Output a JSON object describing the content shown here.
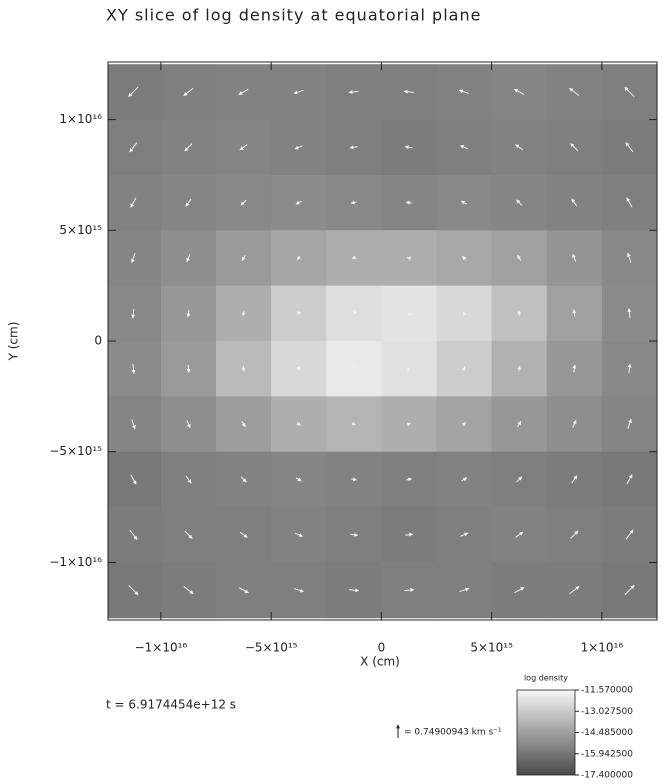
{
  "chart_data": {
    "type": "heatmap",
    "title": "XY slice of log density at equatorial plane",
    "x_label": "X (cm)",
    "y_label": "Y (cm)",
    "xlim": [
      -1.24e+16,
      1.25e+16
    ],
    "ylim": [
      -1.26e+16,
      1.26e+16
    ],
    "xticks": [
      {
        "value": -1e+16,
        "label": "−1×10¹⁶"
      },
      {
        "value": -5000000000000000.0,
        "label": "−5×10¹⁵"
      },
      0,
      {
        "value": 5000000000000000.0,
        "label": "5×10¹⁵"
      },
      {
        "value": 1e+16,
        "label": "1×10¹⁶"
      }
    ],
    "yticks": [
      {
        "value": -1e+16,
        "label": "−1×10¹⁶"
      },
      {
        "value": -5000000000000000.0,
        "label": "−5×10¹⁵"
      },
      0,
      {
        "value": 5000000000000000.0,
        "label": "5×10¹⁵"
      },
      {
        "value": 1e+16,
        "label": "1×10¹⁶"
      }
    ],
    "x": [
      -1.125e+16,
      -8750000000000000.0,
      -6250000000000000.0,
      -3750000000000000.0,
      -1250000000000000.0,
      1250000000000000.0,
      3750000000000000.0,
      6250000000000000.0,
      8750000000000000.0,
      1.125e+16
    ],
    "y": [
      1.125e+16,
      8750000000000000.0,
      6250000000000000.0,
      3750000000000000.0,
      1250000000000000.0,
      -1250000000000000.0,
      -3750000000000000.0,
      -6250000000000000.0,
      -8750000000000000.0,
      -1.125e+16
    ],
    "z": [
      [
        -15.7,
        -15.6,
        -15.5,
        -15.5,
        -15.6,
        -15.6,
        -15.5,
        -15.4,
        -15.5,
        -15.6
      ],
      [
        -15.6,
        -15.5,
        -15.4,
        -15.5,
        -15.6,
        -15.7,
        -15.6,
        -15.5,
        -15.6,
        -15.7
      ],
      [
        -15.5,
        -15.4,
        -15.3,
        -15.2,
        -15.3,
        -15.4,
        -15.3,
        -15.4,
        -15.5,
        -15.6
      ],
      [
        -15.4,
        -15.1,
        -14.7,
        -14.3,
        -14.0,
        -14.0,
        -14.2,
        -14.5,
        -14.9,
        -15.3
      ],
      [
        -15.3,
        -14.8,
        -14.0,
        -13.0,
        -12.4,
        -12.2,
        -12.6,
        -13.4,
        -14.5,
        -15.2
      ],
      [
        -15.2,
        -14.7,
        -13.6,
        -12.6,
        -12.0,
        -12.3,
        -13.0,
        -13.9,
        -14.8,
        -15.3
      ],
      [
        -15.4,
        -15.1,
        -14.6,
        -14.0,
        -13.8,
        -14.0,
        -14.4,
        -14.8,
        -15.1,
        -15.4
      ],
      [
        -15.8,
        -15.6,
        -15.5,
        -15.4,
        -15.5,
        -15.6,
        -15.5,
        -15.6,
        -15.7,
        -15.8
      ],
      [
        -15.7,
        -15.6,
        -15.6,
        -15.5,
        -15.6,
        -15.7,
        -15.6,
        -15.5,
        -15.6,
        -15.7
      ],
      [
        -15.8,
        -15.7,
        -15.6,
        -15.6,
        -15.7,
        -15.6,
        -15.6,
        -15.7,
        -15.7,
        -15.8
      ]
    ],
    "u": [
      [
        -0.54,
        -0.54,
        -0.54,
        -0.54,
        -0.54,
        -0.54,
        -0.54,
        -0.54,
        -0.54,
        -0.54
      ],
      [
        -0.42,
        -0.42,
        -0.42,
        -0.42,
        -0.42,
        -0.42,
        -0.42,
        -0.42,
        -0.42,
        -0.42
      ],
      [
        -0.3,
        -0.3,
        -0.3,
        -0.3,
        -0.3,
        -0.3,
        -0.3,
        -0.3,
        -0.3,
        -0.3
      ],
      [
        -0.18,
        -0.18,
        -0.18,
        -0.18,
        -0.18,
        -0.18,
        -0.18,
        -0.18,
        -0.18,
        -0.18
      ],
      [
        -0.06,
        -0.06,
        -0.06,
        -0.06,
        -0.06,
        -0.06,
        -0.06,
        -0.06,
        -0.06,
        -0.06
      ],
      [
        0.06,
        0.06,
        0.06,
        0.06,
        0.06,
        0.06,
        0.06,
        0.06,
        0.06,
        0.06
      ],
      [
        0.18,
        0.18,
        0.18,
        0.18,
        0.18,
        0.18,
        0.18,
        0.18,
        0.18,
        0.18
      ],
      [
        0.3,
        0.3,
        0.3,
        0.3,
        0.3,
        0.3,
        0.3,
        0.3,
        0.3,
        0.3
      ],
      [
        0.42,
        0.42,
        0.42,
        0.42,
        0.42,
        0.42,
        0.42,
        0.42,
        0.42,
        0.42
      ],
      [
        0.54,
        0.54,
        0.54,
        0.54,
        0.54,
        0.54,
        0.54,
        0.54,
        0.54,
        0.54
      ]
    ],
    "v": [
      [
        -0.54,
        -0.42,
        -0.3,
        -0.18,
        -0.06,
        0.06,
        0.18,
        0.3,
        0.42,
        0.54
      ],
      [
        -0.54,
        -0.42,
        -0.3,
        -0.18,
        -0.06,
        0.06,
        0.18,
        0.3,
        0.42,
        0.54
      ],
      [
        -0.54,
        -0.42,
        -0.3,
        -0.18,
        -0.06,
        0.06,
        0.18,
        0.3,
        0.42,
        0.54
      ],
      [
        -0.54,
        -0.42,
        -0.3,
        -0.18,
        -0.06,
        0.06,
        0.18,
        0.3,
        0.42,
        0.54
      ],
      [
        -0.54,
        -0.42,
        -0.3,
        -0.18,
        -0.06,
        0.06,
        0.18,
        0.3,
        0.42,
        0.54
      ],
      [
        -0.54,
        -0.42,
        -0.3,
        -0.18,
        -0.06,
        0.06,
        0.18,
        0.3,
        0.42,
        0.54
      ],
      [
        -0.54,
        -0.42,
        -0.3,
        -0.18,
        -0.06,
        0.06,
        0.18,
        0.3,
        0.42,
        0.54
      ],
      [
        -0.54,
        -0.42,
        -0.3,
        -0.18,
        -0.06,
        0.06,
        0.18,
        0.3,
        0.42,
        0.54
      ],
      [
        -0.54,
        -0.42,
        -0.3,
        -0.18,
        -0.06,
        0.06,
        0.18,
        0.3,
        0.42,
        0.54
      ],
      [
        -0.54,
        -0.42,
        -0.3,
        -0.18,
        -0.06,
        0.06,
        0.18,
        0.3,
        0.42,
        0.54
      ]
    ],
    "vector_reference": {
      "value": 0.74900943,
      "label": "= 0.74900943 km s⁻¹"
    },
    "time_label": "t = 6.9174454e+12 s",
    "colorbar": {
      "label": "log density",
      "zlim": [
        -17.4,
        -11.57
      ],
      "colors": [
        "#4a4a4a",
        "#f6f6f6"
      ],
      "ticks": [
        {
          "value": -11.57,
          "label": "-11.570000"
        },
        {
          "value": -13.0275,
          "label": "-13.027500"
        },
        {
          "value": -14.485,
          "label": "-14.485000"
        },
        {
          "value": -15.9425,
          "label": "-15.942500"
        },
        {
          "value": -17.4,
          "label": "-17.400000"
        }
      ]
    }
  }
}
